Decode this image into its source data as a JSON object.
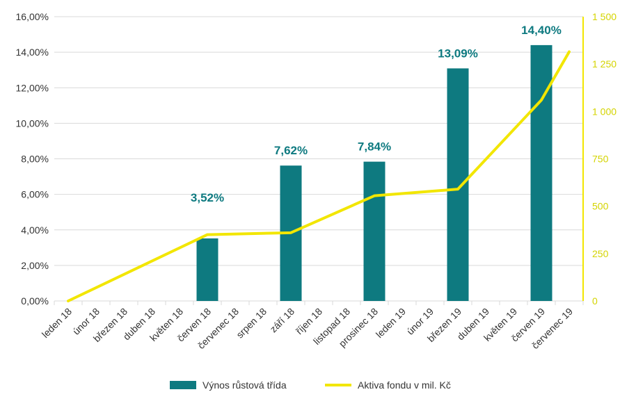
{
  "chart_data": {
    "type": "bar",
    "categories": [
      "leden 18",
      "únor 18",
      "březen 18",
      "duben 18",
      "květen 18",
      "červen 18",
      "červenec 18",
      "srpen 18",
      "září 18",
      "říjen 18",
      "listopad 18",
      "prosinec 18",
      "leden 19",
      "únor 19",
      "březen 19",
      "duben 19",
      "květen 19",
      "červen 19",
      "červenec 19"
    ],
    "series": [
      {
        "name": "Výnos růstová třída",
        "type": "bar",
        "axis": "left",
        "color": "#0e7a80",
        "values": [
          null,
          null,
          null,
          null,
          null,
          3.52,
          null,
          null,
          7.62,
          null,
          null,
          7.84,
          null,
          null,
          13.09,
          null,
          null,
          14.4,
          null
        ],
        "labels": [
          null,
          null,
          null,
          null,
          null,
          "3,52%",
          null,
          null,
          "7,62%",
          null,
          null,
          "7,84%",
          null,
          null,
          "13,09%",
          null,
          null,
          "14,40%",
          null
        ]
      },
      {
        "name": "Aktiva fondu v mil. Kč",
        "type": "line",
        "axis": "right",
        "color": "#f2e600",
        "values": [
          0,
          null,
          null,
          null,
          null,
          350,
          null,
          null,
          360,
          null,
          null,
          555,
          null,
          null,
          590,
          null,
          null,
          1060,
          1315
        ]
      }
    ],
    "y_left": {
      "min": 0,
      "max": 16,
      "step": 2,
      "tick_labels": [
        "0,00%",
        "2,00%",
        "4,00%",
        "6,00%",
        "8,00%",
        "10,00%",
        "12,00%",
        "14,00%",
        "16,00%"
      ]
    },
    "y_right": {
      "min": 0,
      "max": 1500,
      "step": 250,
      "tick_labels": [
        "0",
        "250",
        "500",
        "750",
        "1 000",
        "1 250",
        "1 500"
      ]
    },
    "grid": true,
    "legend_position": "bottom"
  }
}
